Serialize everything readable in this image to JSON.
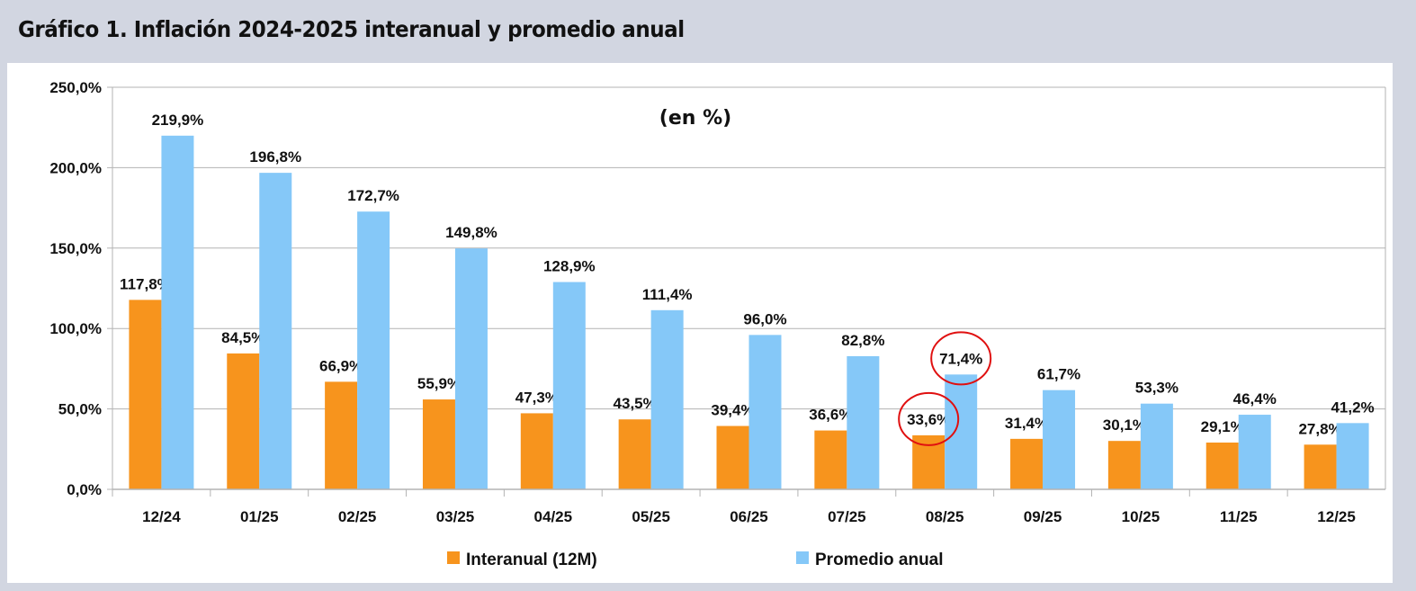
{
  "header": {
    "title": "Gráfico 1. Inflación 2024-2025 interanual y promedio anual"
  },
  "chart_data": {
    "type": "bar",
    "title": "Gráfico 1. Inflación 2024-2025 interanual y promedio anual",
    "subtitle": "(en %)",
    "xlabel": "",
    "ylabel": "",
    "ylim": [
      0,
      250
    ],
    "yticks": [
      "0,0%",
      "50,0%",
      "100,0%",
      "150,0%",
      "200,0%",
      "250,0%"
    ],
    "grid": true,
    "legend": "bottom",
    "categories": [
      "12/24",
      "01/25",
      "02/25",
      "03/25",
      "04/25",
      "05/25",
      "06/25",
      "07/25",
      "08/25",
      "09/25",
      "10/25",
      "11/25",
      "12/25"
    ],
    "series": [
      {
        "name": "Interanual (12M)",
        "color": "#f7941d",
        "values": [
          117.8,
          84.5,
          66.9,
          55.9,
          47.3,
          43.5,
          39.4,
          36.6,
          33.6,
          31.4,
          30.1,
          29.1,
          27.8
        ],
        "labels": [
          "117,8%",
          "84,5%",
          "66,9%",
          "55,9%",
          "47,3%",
          "43,5%",
          "39,4%",
          "36,6%",
          "33,6%",
          "31,4%",
          "30,1%",
          "29,1%",
          "27,8%"
        ]
      },
      {
        "name": "Promedio anual",
        "color": "#85c8f8",
        "values": [
          219.9,
          196.8,
          172.7,
          149.8,
          128.9,
          111.4,
          96.0,
          82.8,
          71.4,
          61.7,
          53.3,
          46.4,
          41.2
        ],
        "labels": [
          "219,9%",
          "196,8%",
          "172,7%",
          "149,8%",
          "128,9%",
          "111,4%",
          "96,0%",
          "82,8%",
          "71,4%",
          "61,7%",
          "53,3%",
          "46,4%",
          "41,2%"
        ]
      }
    ],
    "annotations": [
      {
        "type": "circle",
        "color": "#e01010",
        "category": "08/25",
        "series": "Interanual (12M)"
      },
      {
        "type": "circle",
        "color": "#e01010",
        "category": "08/25",
        "series": "Promedio anual"
      }
    ]
  }
}
